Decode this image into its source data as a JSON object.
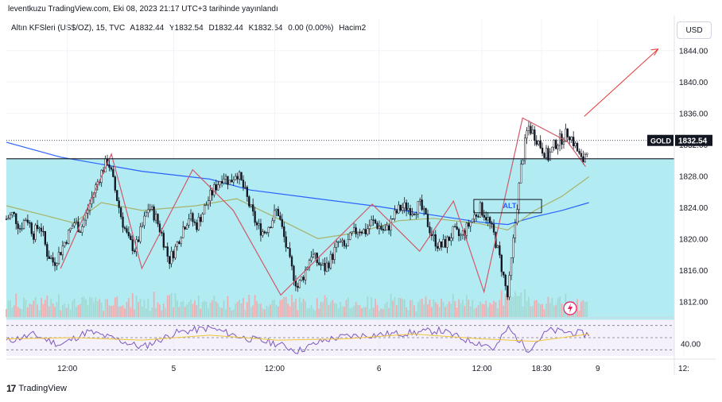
{
  "header": {
    "publish_text": "leventkuzu TradingView.com, Eki 08, 2023 21:17 UTC+3 tarihinde yayınlandı"
  },
  "legend": {
    "symbol": "Altın KFSleri (US$/OZ), 15, TVC",
    "open": "A1832.44",
    "high": "Y1832.54",
    "low": "D1832.44",
    "close": "K1832.54",
    "change": "0.00 (0.00%)",
    "volume_label": "Hacim2"
  },
  "currency_button": "USD",
  "price_tag": {
    "label": "GOLD",
    "value": "1832.54"
  },
  "chart_label": "ALT",
  "footer": {
    "brand_logo": "17",
    "brand": "TradingView"
  },
  "colors": {
    "shaded_zone": "#b2ebf2",
    "ma_blue": "#2962ff",
    "ma_olive": "#a8b26a",
    "zigzag": "#d05a6a",
    "arrow": "#e53935",
    "rsi_line": "#7e57c2",
    "rsi_signal": "#f0c53a",
    "rsi_band": "#ede7f6"
  },
  "chart_data": [
    {
      "type": "candlestick",
      "title": "Altın KFSleri (US$/OZ), 15, TVC",
      "ylim": [
        1810,
        1846
      ],
      "yticks": [
        1812,
        1816,
        1820,
        1824,
        1828,
        1832,
        1836,
        1840,
        1844
      ],
      "ytick_labels": [
        "1812.00",
        "1816.00",
        "1820.00",
        "1824.00",
        "1828.00",
        "1832.00",
        "1836.00",
        "1840.00",
        "1844.00"
      ],
      "xticks": [
        "12:00",
        "5",
        "12:00",
        "6",
        "12:00",
        "18:30",
        "9",
        "12:"
      ],
      "last_price": 1832.54,
      "horizontal_level": 1830.2,
      "zone": [
        1809.6,
        1830.2
      ],
      "zigzag_points": [
        [
          0.08,
          1816.2
        ],
        [
          0.155,
          1830.8
        ],
        [
          0.2,
          1816.2
        ],
        [
          0.275,
          1828.8
        ],
        [
          0.335,
          1823.6
        ],
        [
          0.405,
          1812.8
        ],
        [
          0.54,
          1824.4
        ],
        [
          0.61,
          1818.4
        ],
        [
          0.66,
          1824.8
        ],
        [
          0.705,
          1813.2
        ],
        [
          0.762,
          1835.4
        ],
        [
          0.828,
          1832.4
        ],
        [
          0.855,
          1829.2
        ]
      ],
      "series": [
        {
          "name": "candles",
          "points": [
            [
              0.0,
              1822.5
            ],
            [
              0.01,
              1823.2
            ],
            [
              0.02,
              1821.4
            ],
            [
              0.03,
              1822.8
            ],
            [
              0.04,
              1820.6
            ],
            [
              0.05,
              1821.9
            ],
            [
              0.06,
              1818.2
            ],
            [
              0.07,
              1816.9
            ],
            [
              0.08,
              1818.4
            ],
            [
              0.09,
              1820.3
            ],
            [
              0.1,
              1822.1
            ],
            [
              0.11,
              1821.2
            ],
            [
              0.12,
              1823.6
            ],
            [
              0.13,
              1826.2
            ],
            [
              0.14,
              1828.4
            ],
            [
              0.15,
              1830.1
            ],
            [
              0.16,
              1826.4
            ],
            [
              0.17,
              1822.6
            ],
            [
              0.18,
              1819.8
            ],
            [
              0.19,
              1818.6
            ],
            [
              0.2,
              1821.4
            ],
            [
              0.21,
              1824.1
            ],
            [
              0.22,
              1822.8
            ],
            [
              0.23,
              1820.4
            ],
            [
              0.24,
              1817.2
            ],
            [
              0.25,
              1818.9
            ],
            [
              0.26,
              1821.3
            ],
            [
              0.27,
              1822.9
            ],
            [
              0.28,
              1821.6
            ],
            [
              0.29,
              1823.4
            ],
            [
              0.3,
              1825.3
            ],
            [
              0.31,
              1826.8
            ],
            [
              0.32,
              1828.1
            ],
            [
              0.33,
              1827.2
            ],
            [
              0.34,
              1828.6
            ],
            [
              0.35,
              1826.5
            ],
            [
              0.36,
              1823.9
            ],
            [
              0.37,
              1821.6
            ],
            [
              0.38,
              1820.8
            ],
            [
              0.39,
              1822.1
            ],
            [
              0.4,
              1823.8
            ],
            [
              0.41,
              1820.1
            ],
            [
              0.42,
              1816.4
            ],
            [
              0.43,
              1813.8
            ],
            [
              0.44,
              1815.6
            ],
            [
              0.45,
              1818.1
            ],
            [
              0.46,
              1816.9
            ],
            [
              0.47,
              1816.2
            ],
            [
              0.48,
              1817.6
            ],
            [
              0.49,
              1819.5
            ],
            [
              0.5,
              1818.8
            ],
            [
              0.51,
              1820.4
            ],
            [
              0.52,
              1821.3
            ],
            [
              0.53,
              1820.9
            ],
            [
              0.54,
              1822.2
            ],
            [
              0.55,
              1821.6
            ],
            [
              0.56,
              1820.8
            ],
            [
              0.57,
              1822.6
            ],
            [
              0.58,
              1823.8
            ],
            [
              0.59,
              1824.1
            ],
            [
              0.6,
              1823.6
            ],
            [
              0.61,
              1824.3
            ],
            [
              0.62,
              1822.4
            ],
            [
              0.63,
              1820.1
            ],
            [
              0.64,
              1818.9
            ],
            [
              0.65,
              1819.6
            ],
            [
              0.66,
              1820.9
            ],
            [
              0.67,
              1820.2
            ],
            [
              0.68,
              1821.4
            ],
            [
              0.69,
              1822.8
            ],
            [
              0.7,
              1823.9
            ],
            [
              0.71,
              1822.6
            ],
            [
              0.72,
              1820.4
            ],
            [
              0.73,
              1816.8
            ],
            [
              0.74,
              1812.4
            ],
            [
              0.75,
              1821.2
            ],
            [
              0.76,
              1829.3
            ],
            [
              0.77,
              1834.4
            ],
            [
              0.78,
              1833.2
            ],
            [
              0.79,
              1831.6
            ],
            [
              0.8,
              1830.4
            ],
            [
              0.81,
              1832.1
            ],
            [
              0.82,
              1832.8
            ],
            [
              0.83,
              1833.6
            ],
            [
              0.84,
              1831.8
            ],
            [
              0.85,
              1829.6
            ],
            [
              0.86,
              1832.54
            ]
          ]
        },
        {
          "name": "MA blue",
          "points": [
            [
              0.0,
              1832.3
            ],
            [
              0.08,
              1830.4
            ],
            [
              0.2,
              1828.6
            ],
            [
              0.3,
              1827.6
            ],
            [
              0.36,
              1826.2
            ],
            [
              0.45,
              1825.2
            ],
            [
              0.55,
              1824.1
            ],
            [
              0.63,
              1823.0
            ],
            [
              0.7,
              1822.1
            ],
            [
              0.74,
              1821.8
            ],
            [
              0.78,
              1822.8
            ],
            [
              0.82,
              1823.6
            ],
            [
              0.86,
              1824.6
            ]
          ]
        },
        {
          "name": "MA olive",
          "points": [
            [
              0.0,
              1824.2
            ],
            [
              0.06,
              1822.9
            ],
            [
              0.1,
              1822.0
            ],
            [
              0.14,
              1824.6
            ],
            [
              0.2,
              1823.6
            ],
            [
              0.28,
              1824.2
            ],
            [
              0.34,
              1825.1
            ],
            [
              0.4,
              1822.6
            ],
            [
              0.46,
              1820.0
            ],
            [
              0.52,
              1820.8
            ],
            [
              0.58,
              1822.3
            ],
            [
              0.63,
              1822.6
            ],
            [
              0.7,
              1821.9
            ],
            [
              0.74,
              1821.1
            ],
            [
              0.78,
              1823.6
            ],
            [
              0.82,
              1825.4
            ],
            [
              0.86,
              1827.9
            ]
          ]
        }
      ]
    },
    {
      "type": "line",
      "title": "",
      "ylim": [
        20,
        80
      ],
      "yticks": [
        40
      ],
      "ytick_labels": [
        "40.00"
      ],
      "bands": [
        30,
        50,
        70
      ],
      "series": [
        {
          "name": "",
          "points": [
            [
              0.0,
              44
            ],
            [
              0.04,
              55
            ],
            [
              0.08,
              38
            ],
            [
              0.12,
              60
            ],
            [
              0.16,
              48
            ],
            [
              0.2,
              34
            ],
            [
              0.25,
              58
            ],
            [
              0.3,
              66
            ],
            [
              0.35,
              50
            ],
            [
              0.4,
              40
            ],
            [
              0.43,
              28
            ],
            [
              0.47,
              46
            ],
            [
              0.5,
              52
            ],
            [
              0.55,
              55
            ],
            [
              0.6,
              58
            ],
            [
              0.64,
              62
            ],
            [
              0.68,
              46
            ],
            [
              0.71,
              38
            ],
            [
              0.72,
              30
            ],
            [
              0.74,
              66
            ],
            [
              0.77,
              30
            ],
            [
              0.8,
              62
            ],
            [
              0.84,
              58
            ],
            [
              0.86,
              55
            ]
          ]
        },
        {
          "name": "",
          "points": [
            [
              0.0,
              48
            ],
            [
              0.1,
              50
            ],
            [
              0.2,
              46
            ],
            [
              0.3,
              54
            ],
            [
              0.4,
              46
            ],
            [
              0.5,
              48
            ],
            [
              0.6,
              56
            ],
            [
              0.7,
              48
            ],
            [
              0.78,
              44
            ],
            [
              0.86,
              56
            ]
          ]
        }
      ]
    }
  ]
}
